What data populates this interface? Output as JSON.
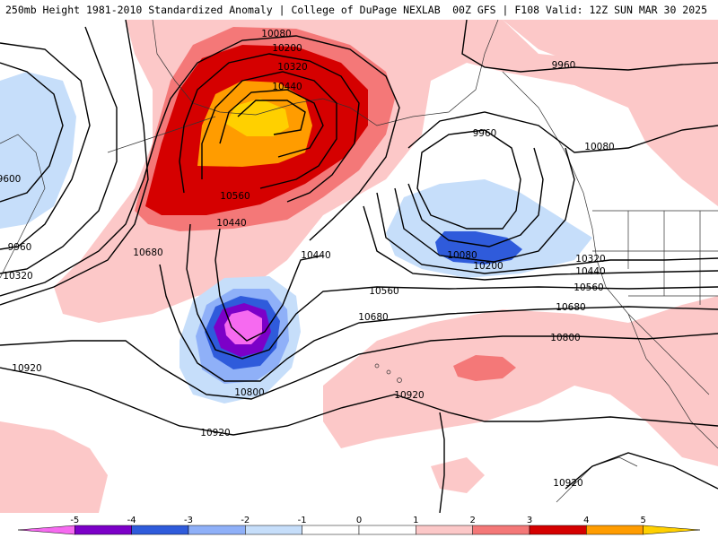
{
  "header": {
    "title_left": "250mb Height 1981-2010 Standardized Anomaly | College of DuPage NEXLAB",
    "title_right": "00Z GFS | F108 Valid: 12Z SUN MAR 30 2025"
  },
  "map": {
    "field": "250mb height",
    "shading": "standardized anomaly",
    "contour_labels": [
      "10080",
      "10200",
      "10320",
      "10440",
      "10560",
      "10440",
      "10680",
      "9960",
      "9960",
      "10080",
      "10080",
      "10200",
      "10320",
      "10440",
      "10560",
      "10680",
      "10800",
      "10440",
      "10560",
      "10680",
      "10800",
      "10920",
      "10920",
      "10920",
      "10920",
      "9600",
      "9960",
      "10320"
    ],
    "colors": {
      "pos1": "#fcc8c8",
      "pos2": "#f47878",
      "pos3": "#d50000",
      "pos4": "#ff9c00",
      "pos5": "#ffd000",
      "neg1": "#c6defa",
      "neg2": "#8fb0f8",
      "neg3": "#2f5bdb",
      "neg4": "#7c00c8",
      "neg5": "#f66af0"
    }
  },
  "colorbar": {
    "ticks": [
      "-5",
      "-4",
      "-3",
      "-2",
      "-1",
      "0",
      "1",
      "2",
      "3",
      "4",
      "5"
    ],
    "colors": [
      "#f66af0",
      "#7c00c8",
      "#2f5bdb",
      "#8fb0f8",
      "#c6defa",
      "#ffffff",
      "#ffffff",
      "#fcc8c8",
      "#f47878",
      "#d50000",
      "#ff9c00",
      "#ffd000"
    ]
  }
}
